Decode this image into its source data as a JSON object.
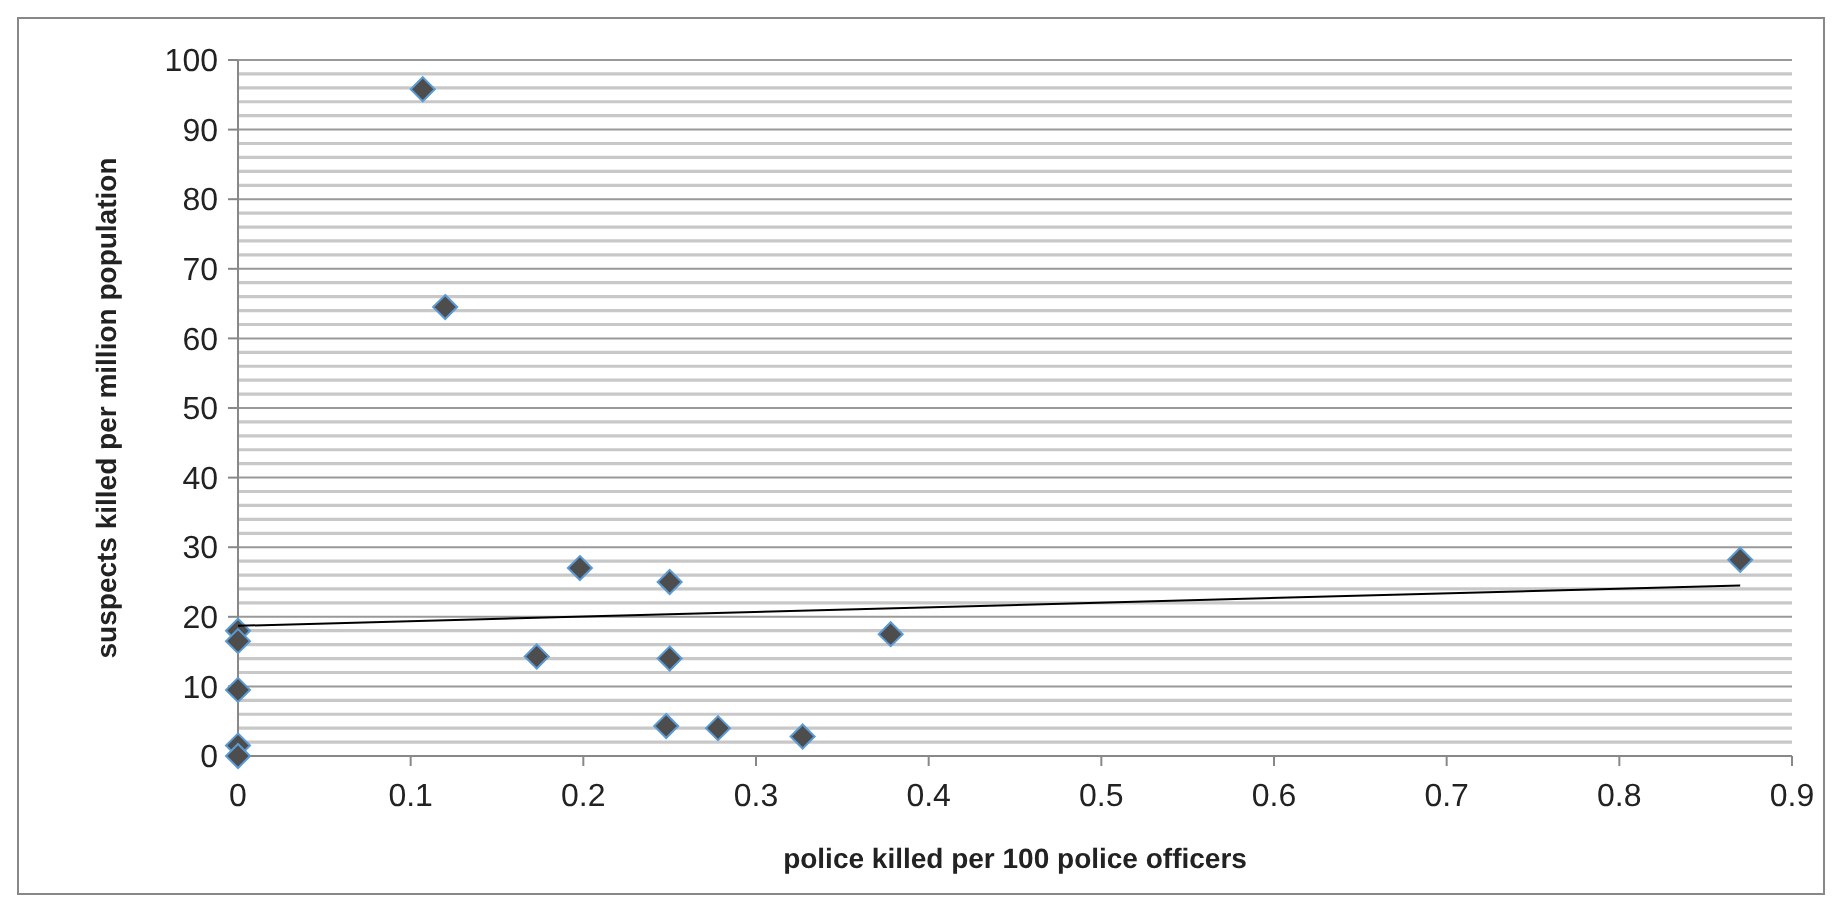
{
  "chart_data": {
    "type": "scatter",
    "xlabel": "police killed per 100 police officers",
    "ylabel": "suspects killed per million population",
    "xlim": [
      0,
      0.9
    ],
    "xticks": [
      0,
      0.1,
      0.2,
      0.3,
      0.4,
      0.5,
      0.6,
      0.7,
      0.8,
      0.9
    ],
    "ylim": [
      0,
      100
    ],
    "yticks": [
      0,
      {
        "value": 2,
        "label": null
      },
      {
        "value": 4,
        "label": null
      },
      {
        "value": 6,
        "label": null
      },
      {
        "value": 8,
        "label": null
      },
      10,
      {
        "value": 12,
        "label": null
      },
      {
        "value": 14,
        "label": null
      },
      {
        "value": 16,
        "label": null
      },
      {
        "value": 18,
        "label": null
      },
      20,
      {
        "value": 22,
        "label": null
      },
      {
        "value": 24,
        "label": null
      },
      {
        "value": 26,
        "label": null
      },
      {
        "value": 28,
        "label": null
      },
      30,
      {
        "value": 32,
        "label": null
      },
      {
        "value": 34,
        "label": null
      },
      {
        "value": 36,
        "label": null
      },
      {
        "value": 38,
        "label": null
      },
      40,
      {
        "value": 42,
        "label": null
      },
      {
        "value": 44,
        "label": null
      },
      {
        "value": 46,
        "label": null
      },
      {
        "value": 48,
        "label": null
      },
      50,
      {
        "value": 52,
        "label": null
      },
      {
        "value": 54,
        "label": null
      },
      {
        "value": 56,
        "label": null
      },
      {
        "value": 58,
        "label": null
      },
      60,
      {
        "value": 62,
        "label": null
      },
      {
        "value": 64,
        "label": null
      },
      {
        "value": 66,
        "label": null
      },
      {
        "value": 68,
        "label": null
      },
      70,
      {
        "value": 72,
        "label": null
      },
      {
        "value": 74,
        "label": null
      },
      {
        "value": 76,
        "label": null
      },
      {
        "value": 78,
        "label": null
      },
      80,
      {
        "value": 82,
        "label": null
      },
      {
        "value": 84,
        "label": null
      },
      {
        "value": 86,
        "label": null
      },
      {
        "value": 88,
        "label": null
      },
      90,
      {
        "value": 92,
        "label": null
      },
      {
        "value": 94,
        "label": null
      },
      {
        "value": 96,
        "label": null
      },
      {
        "value": 98,
        "label": null
      },
      100
    ],
    "grid": "y",
    "marker": "diamond",
    "series": [
      {
        "color": "#4d4d4d",
        "x": [
          0,
          0,
          0,
          0,
          0,
          0.107,
          0.12,
          0.173,
          0.198,
          0.25,
          0.248,
          0.25,
          0.278,
          0.327,
          0.378,
          0.87
        ],
        "values": [
          18,
          16.5,
          9.5,
          1.5,
          0,
          95.8,
          64.5,
          14.3,
          27,
          25,
          4.3,
          14,
          4,
          2.8,
          17.5,
          28.2
        ]
      },
      {
        "type": "line",
        "color": "#000000",
        "marker": "none",
        "x": [
          0,
          0.87
        ],
        "values": [
          18.7,
          24.5
        ]
      }
    ]
  }
}
